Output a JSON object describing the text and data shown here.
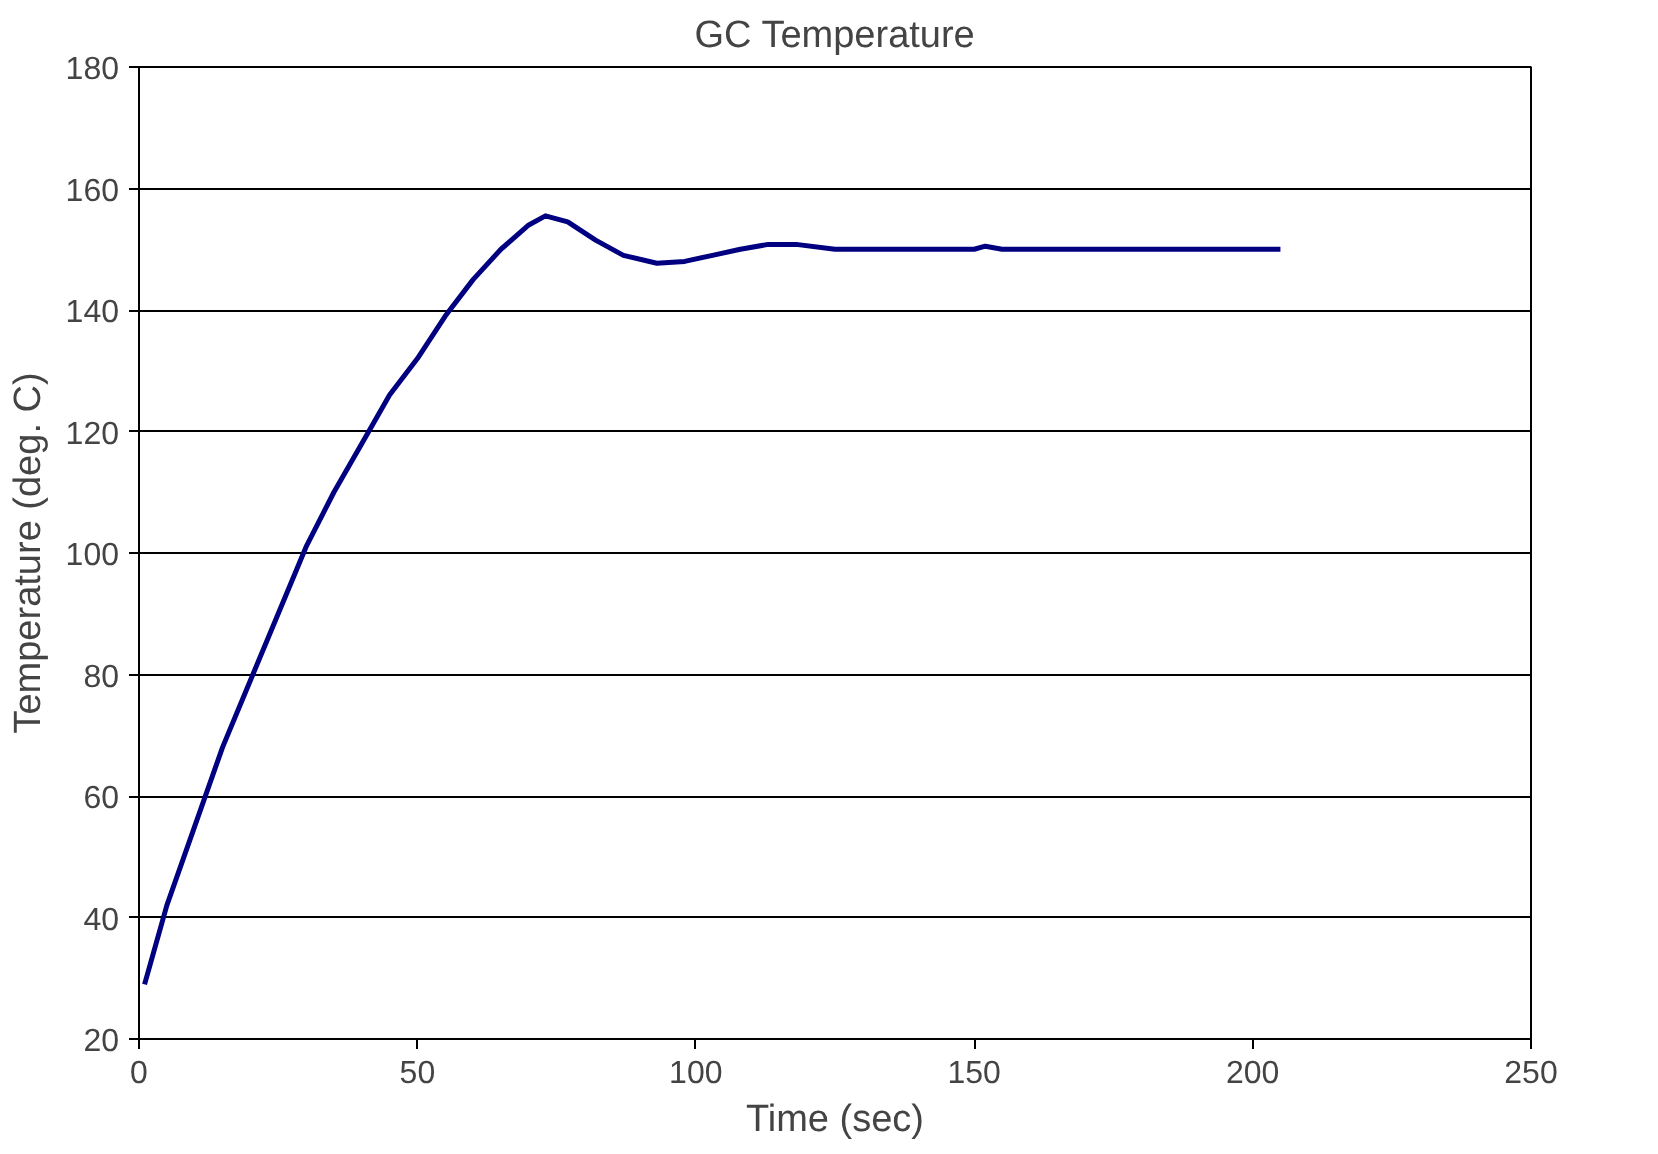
{
  "chart_data": {
    "type": "line",
    "title": "GC Temperature",
    "xlabel": "Time (sec)",
    "ylabel": "Temperature (deg. C)",
    "x": [
      1,
      5,
      10,
      15,
      20,
      25,
      30,
      35,
      40,
      45,
      50,
      55,
      60,
      65,
      70,
      73,
      77,
      82,
      87,
      93,
      98,
      103,
      108,
      113,
      118,
      125,
      150,
      152,
      155,
      205
    ],
    "series": [
      {
        "color": "#000080",
        "values": [
          29,
          42,
          55,
          68,
          79,
          90,
          101,
          110,
          118,
          126,
          132,
          139,
          145,
          150,
          154,
          155.5,
          154.5,
          151.5,
          149,
          147.7,
          148,
          149,
          150,
          150.8,
          150.8,
          150,
          150,
          150.5,
          150,
          150
        ]
      }
    ],
    "xlim": [
      0,
      250
    ],
    "xticks": [
      0,
      50,
      100,
      150,
      200,
      250
    ],
    "ylim": [
      20,
      180
    ],
    "yticks": [
      20,
      40,
      60,
      80,
      100,
      120,
      140,
      160,
      180
    ],
    "grid": "y",
    "marker": "none",
    "line_style": "solid"
  }
}
